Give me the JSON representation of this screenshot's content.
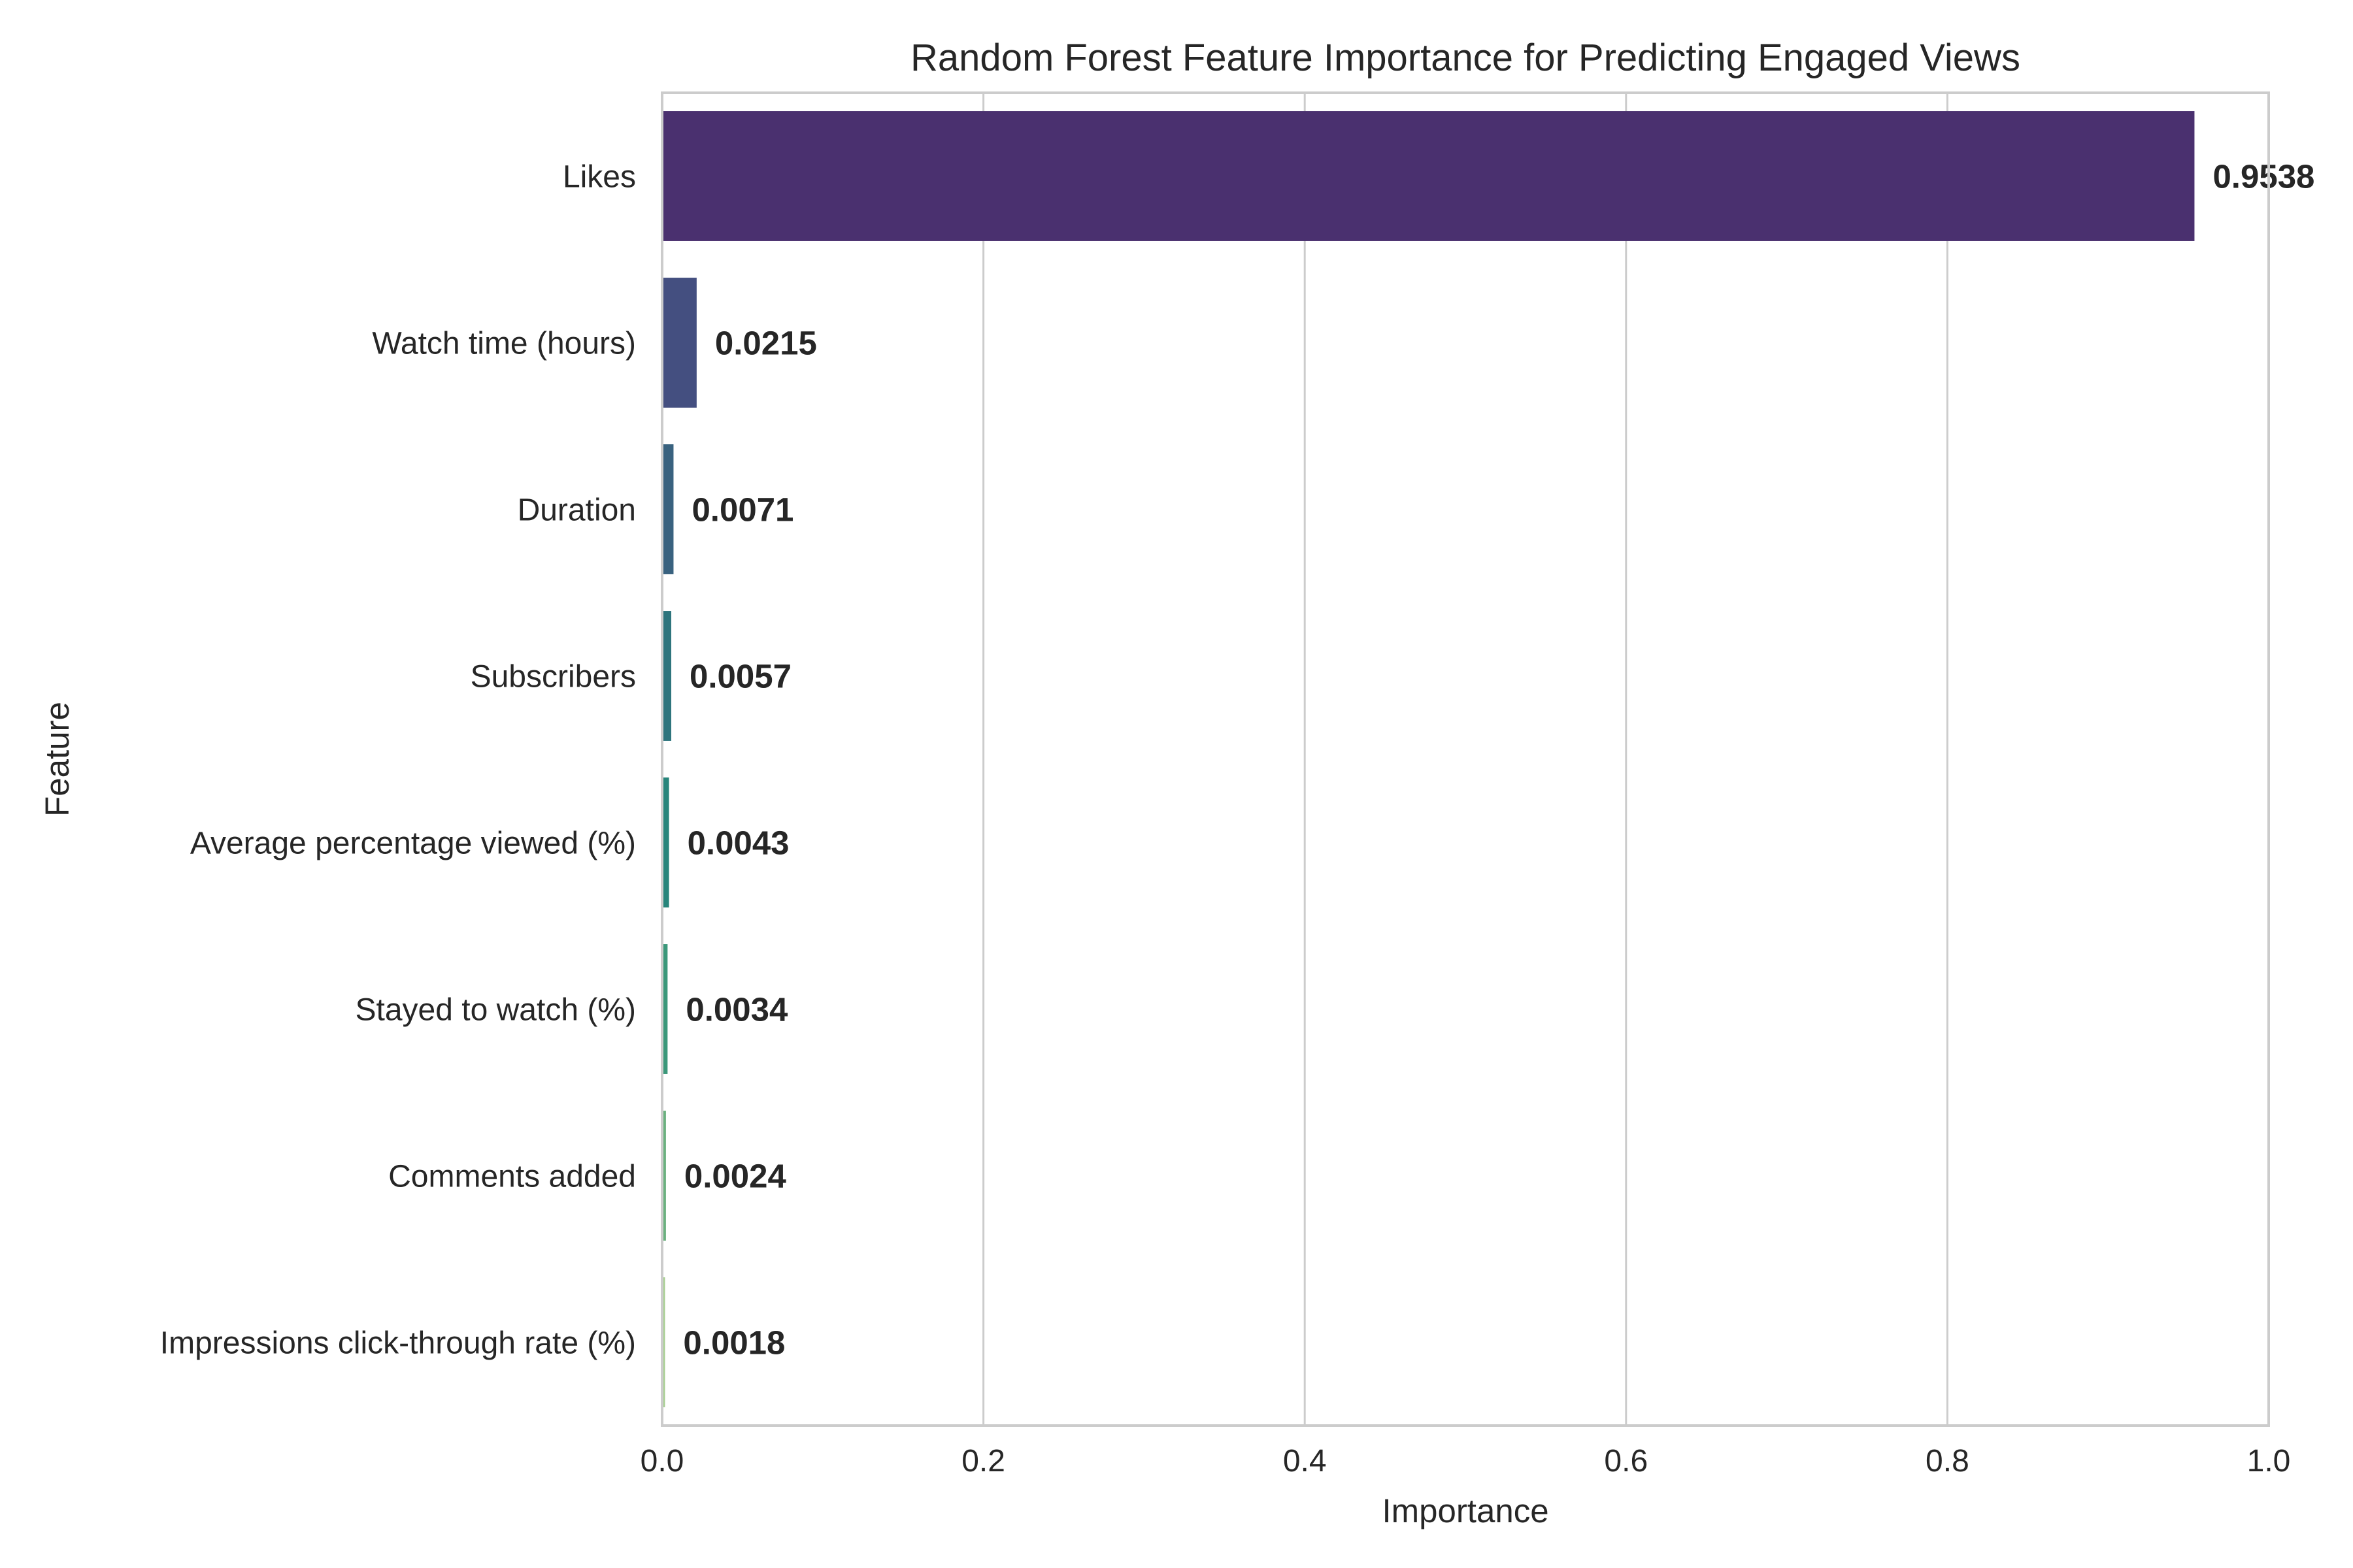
{
  "chart_data": {
    "type": "bar",
    "orientation": "horizontal",
    "title": "Random Forest Feature Importance for Predicting Engaged Views",
    "xlabel": "Importance",
    "ylabel": "Feature",
    "xlim": [
      0,
      1.0
    ],
    "xticks": [
      "0.0",
      "0.2",
      "0.4",
      "0.6",
      "0.8",
      "1.0"
    ],
    "grid": "vertical",
    "palette": "viridis",
    "bars": [
      {
        "category": "Likes",
        "value": 0.9538,
        "label": "0.9538",
        "color": "#4a306f"
      },
      {
        "category": "Watch time (hours)",
        "value": 0.0215,
        "label": "0.0215",
        "color": "#444f80"
      },
      {
        "category": "Duration",
        "value": 0.0071,
        "label": "0.0071",
        "color": "#39627f"
      },
      {
        "category": "Subscribers",
        "value": 0.0057,
        "label": "0.0057",
        "color": "#2e757d"
      },
      {
        "category": "Average percentage viewed (%)",
        "value": 0.0043,
        "label": "0.0043",
        "color": "#27857b"
      },
      {
        "category": "Stayed to watch (%)",
        "value": 0.0034,
        "label": "0.0034",
        "color": "#3b987a"
      },
      {
        "category": "Comments added",
        "value": 0.0024,
        "label": "0.0024",
        "color": "#6bb07f"
      },
      {
        "category": "Impressions click-through rate (%)",
        "value": 0.0018,
        "label": "0.0018",
        "color": "#a7cf91"
      }
    ]
  }
}
